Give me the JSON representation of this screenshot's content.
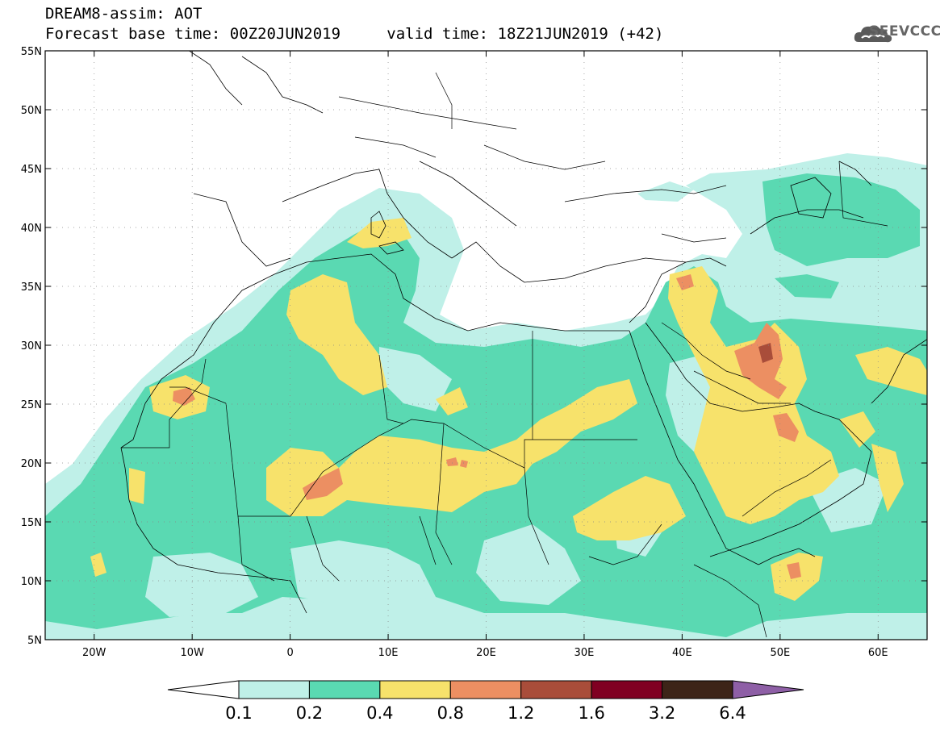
{
  "header": {
    "title": "DREAM8-assim: AOT",
    "base_time_label": "Forecast base time: 00Z20JUN2019",
    "valid_time_label": "valid time: 18Z21JUN2019 (+42)"
  },
  "brand": {
    "name": "SEEVCCC",
    "icon": "cloud-logo-icon"
  },
  "map": {
    "lon_range": [
      -25,
      65
    ],
    "lat_range": [
      5,
      55
    ],
    "lat_ticks": [
      {
        "value": 55,
        "label": "55N"
      },
      {
        "value": 50,
        "label": "50N"
      },
      {
        "value": 45,
        "label": "45N"
      },
      {
        "value": 40,
        "label": "40N"
      },
      {
        "value": 35,
        "label": "35N"
      },
      {
        "value": 30,
        "label": "30N"
      },
      {
        "value": 25,
        "label": "25N"
      },
      {
        "value": 20,
        "label": "20N"
      },
      {
        "value": 15,
        "label": "15N"
      },
      {
        "value": 10,
        "label": "10N"
      },
      {
        "value": 5,
        "label": "5N"
      }
    ],
    "lon_ticks": [
      {
        "value": -20,
        "label": "20W"
      },
      {
        "value": -10,
        "label": "10W"
      },
      {
        "value": 0,
        "label": "0"
      },
      {
        "value": 10,
        "label": "10E"
      },
      {
        "value": 20,
        "label": "20E"
      },
      {
        "value": 30,
        "label": "30E"
      },
      {
        "value": 40,
        "label": "40E"
      },
      {
        "value": 50,
        "label": "50E"
      },
      {
        "value": 60,
        "label": "60E"
      }
    ],
    "grid": true
  },
  "colorbar": {
    "labels": [
      "0.1",
      "0.2",
      "0.4",
      "0.8",
      "1.2",
      "1.6",
      "3.2",
      "6.4"
    ],
    "colors": [
      "#ffffff",
      "#bff0e8",
      "#5ad9b2",
      "#f7e26b",
      "#ec8f62",
      "#a94d3a",
      "#800022",
      "#3d2418",
      "#8e5fa6"
    ]
  }
}
